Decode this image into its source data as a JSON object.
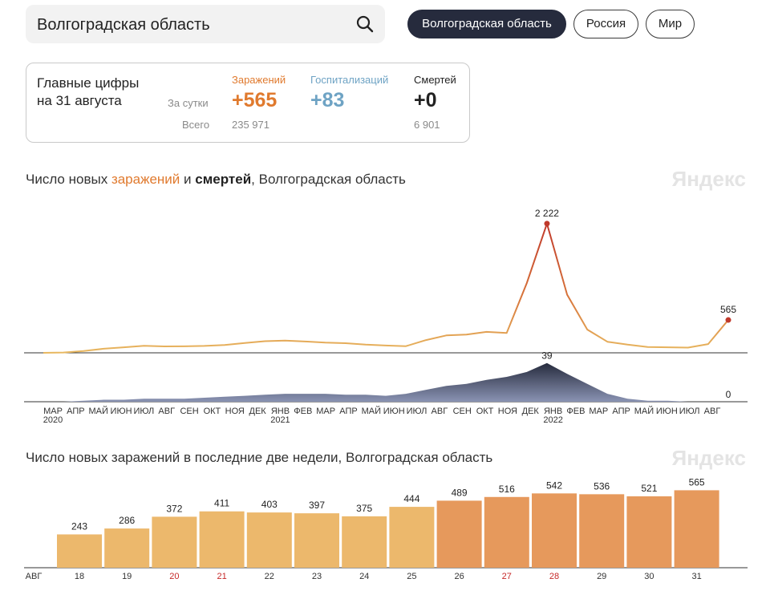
{
  "search": {
    "value": "Волгоградская область"
  },
  "regions": [
    {
      "label": "Волгоградская область",
      "active": true
    },
    {
      "label": "Россия",
      "active": false
    },
    {
      "label": "Мир",
      "active": false
    }
  ],
  "summary": {
    "title": "Главные цифры на 31 августа",
    "per_day_label": "За сутки",
    "total_label": "Всего",
    "infections": {
      "label": "Заражений",
      "today": "+565",
      "total": "235 971",
      "color": "#e07a2e"
    },
    "hospitalizations": {
      "label": "Госпитализаций",
      "today": "+83",
      "total": "",
      "color": "#6ea3c4"
    },
    "deaths": {
      "label": "Смертей",
      "today": "+0",
      "total": "6 901",
      "color": "#222222"
    }
  },
  "chart1": {
    "title_parts": [
      "Число новых ",
      "заражений",
      " и ",
      "смертей",
      ", Волгоградская область"
    ],
    "watermark": "Яндекс"
  },
  "chart2": {
    "title": "Число новых заражений в последние две недели, Волгоградская область",
    "watermark": "Яндекс"
  },
  "chart_data": [
    {
      "type": "line",
      "title": "Число новых заражений и смертей, Волгоградская область",
      "x_labels": [
        "МАР",
        "АПР",
        "МАЙ",
        "ИЮН",
        "ИЮЛ",
        "АВГ",
        "СЕН",
        "ОКТ",
        "НОЯ",
        "ДЕК",
        "ЯНВ",
        "ФЕВ",
        "МАР",
        "АПР",
        "МАЙ",
        "ИЮН",
        "ИЮЛ",
        "АВГ",
        "СЕН",
        "ОКТ",
        "НОЯ",
        "ДЕК",
        "ЯНВ",
        "ФЕВ",
        "МАР",
        "АПР",
        "МАЙ",
        "ИЮН",
        "ИЮЛ",
        "АВГ"
      ],
      "year_labels": [
        {
          "label": "2020",
          "index": 0
        },
        {
          "label": "2021",
          "index": 10
        },
        {
          "label": "2022",
          "index": 22
        }
      ],
      "series": [
        {
          "name": "заражений",
          "color": "#e8b860",
          "peak_color": "#c0392b",
          "values": [
            0,
            5,
            30,
            70,
            95,
            120,
            110,
            112,
            118,
            135,
            170,
            200,
            210,
            195,
            175,
            165,
            140,
            125,
            115,
            220,
            300,
            315,
            360,
            340,
            1200,
            2222,
            1000,
            400,
            190,
            140,
            100,
            95,
            90,
            150,
            565
          ],
          "peak_label": "2 222",
          "last_label": "565",
          "ylim": [
            0,
            2400
          ]
        },
        {
          "name": "смертей",
          "color": "#3d4666",
          "values": [
            0,
            0,
            1,
            2,
            2,
            3,
            3,
            3,
            4,
            5,
            6,
            7,
            8,
            8,
            8,
            7,
            7,
            6,
            8,
            12,
            16,
            18,
            22,
            25,
            30,
            39,
            28,
            18,
            8,
            3,
            1,
            1,
            0,
            0,
            0
          ],
          "peak_label": "39",
          "last_label": "0",
          "ylim": [
            0,
            42
          ]
        }
      ]
    },
    {
      "type": "bar",
      "title": "Число новых заражений в последние две недели, Волгоградская область",
      "month_label": "АВГ",
      "categories": [
        "18",
        "19",
        "20",
        "21",
        "22",
        "23",
        "24",
        "25",
        "26",
        "27",
        "28",
        "29",
        "30",
        "31"
      ],
      "values": [
        243,
        286,
        372,
        411,
        403,
        397,
        375,
        444,
        489,
        516,
        542,
        536,
        521,
        565
      ],
      "highlight_days": [
        "20",
        "21",
        "27",
        "28"
      ],
      "ylim": [
        0,
        620
      ],
      "colors": {
        "light": "#ecb86c",
        "dark": "#e6995c",
        "highlight_text": "#c62828"
      }
    }
  ]
}
